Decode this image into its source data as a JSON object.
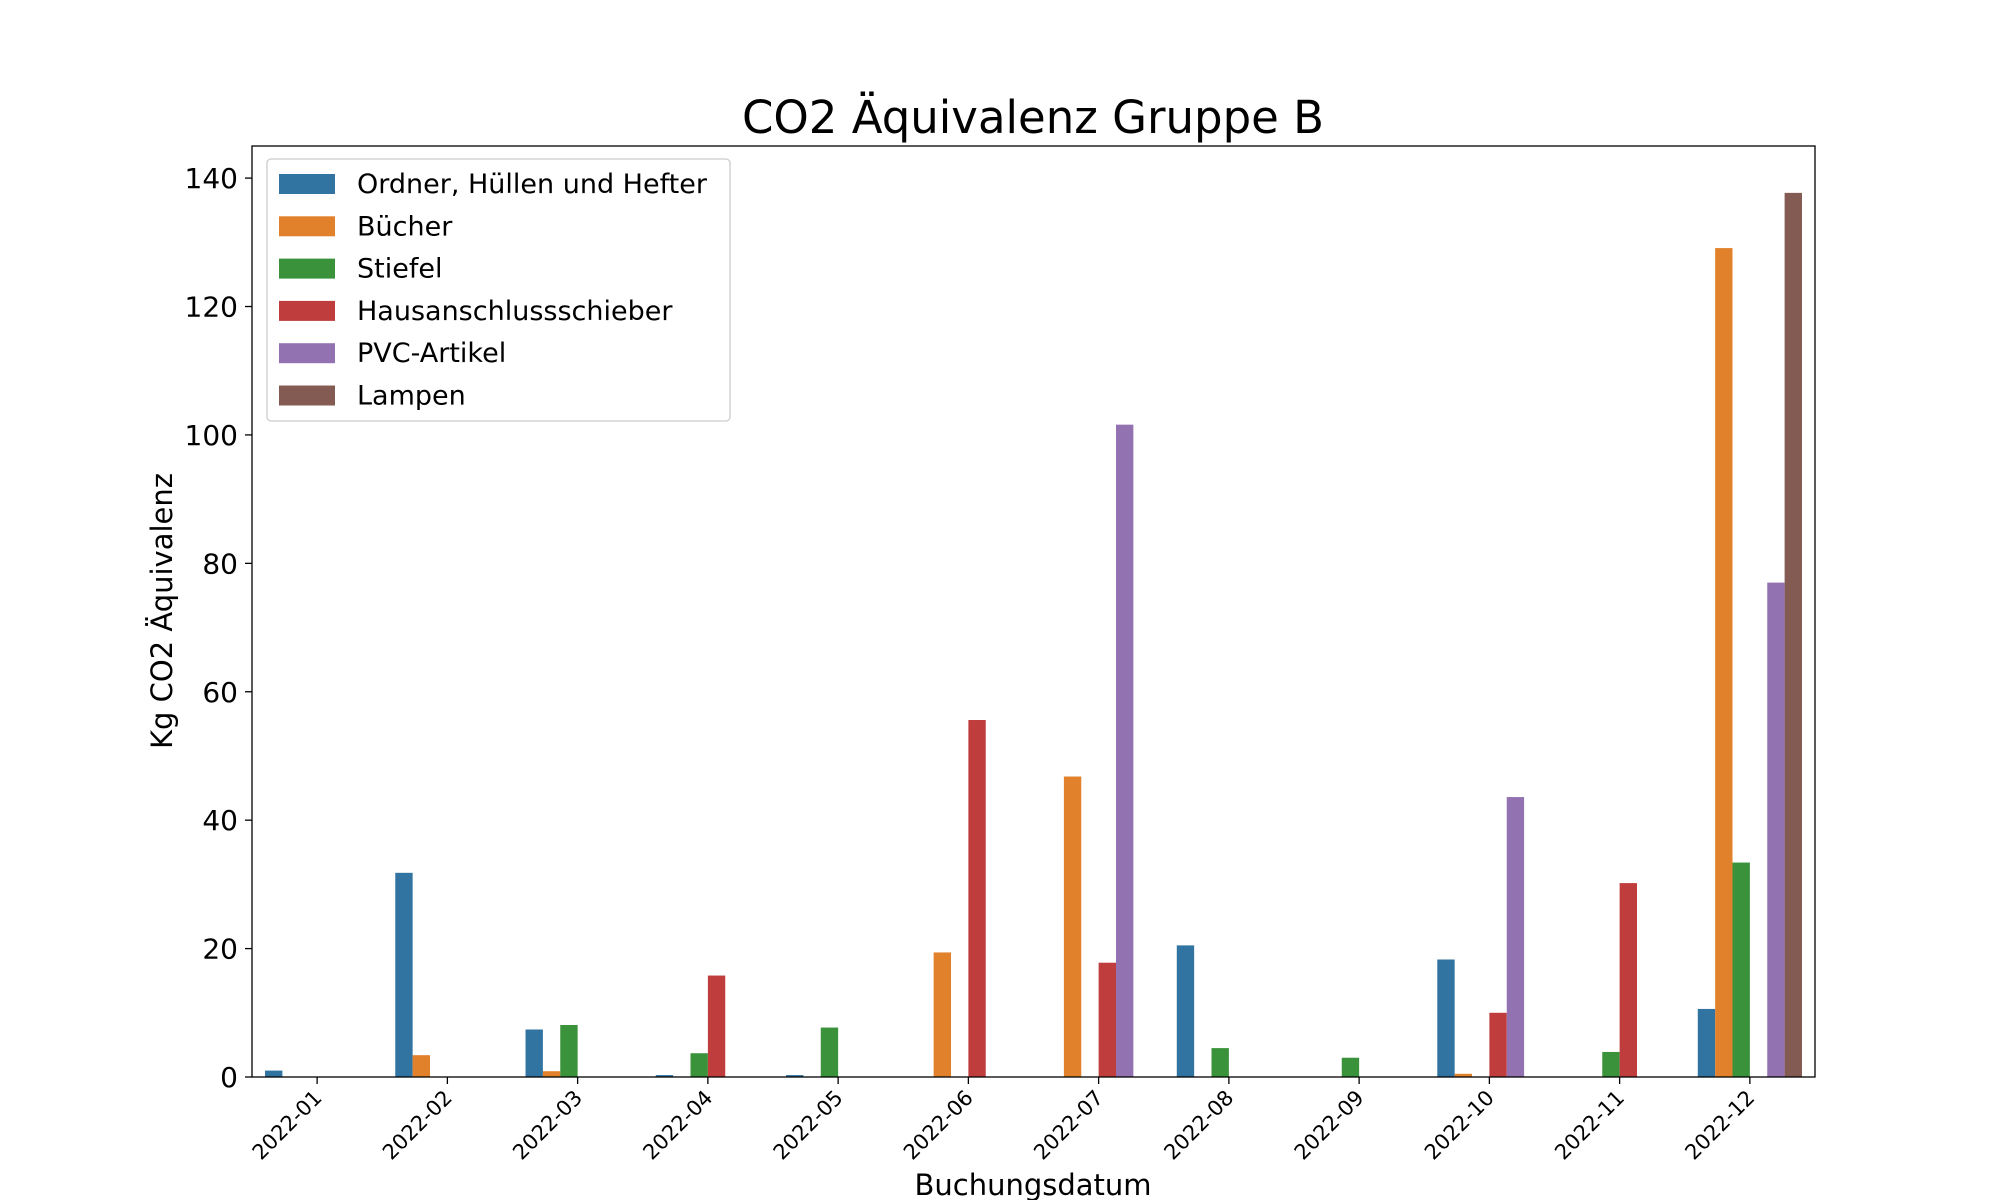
{
  "chart_data": {
    "type": "bar",
    "title": "CO2 Äquivalenz Gruppe B",
    "xlabel": "Buchungsdatum",
    "ylabel": "Kg CO2 Äquivalenz",
    "ylim": [
      0,
      145
    ],
    "yticks": [
      0,
      20,
      40,
      60,
      80,
      100,
      120,
      140
    ],
    "ytick_labels": [
      "0",
      "20",
      "40",
      "60",
      "80",
      "100",
      "120",
      "140"
    ],
    "grid": false,
    "legend_position": "top-left",
    "categories": [
      "2022-01",
      "2022-02",
      "2022-03",
      "2022-04",
      "2022-05",
      "2022-06",
      "2022-07",
      "2022-08",
      "2022-09",
      "2022-10",
      "2022-11",
      "2022-12"
    ],
    "series": [
      {
        "name": "Ordner, Hüllen und Hefter",
        "color": "#3274a1",
        "values": [
          1.0,
          31.8,
          7.4,
          0.3,
          0.3,
          0,
          0,
          20.5,
          0,
          18.3,
          0,
          10.6
        ]
      },
      {
        "name": "Bücher",
        "color": "#e1812c",
        "values": [
          0,
          3.4,
          0.9,
          0,
          0,
          19.4,
          46.8,
          0,
          0,
          0.5,
          0,
          129.1
        ]
      },
      {
        "name": "Stiefel",
        "color": "#3a923a",
        "values": [
          0,
          0,
          8.1,
          3.7,
          7.7,
          0,
          0,
          4.5,
          3.0,
          0,
          3.9,
          33.4
        ]
      },
      {
        "name": "Hausanschlussschieber",
        "color": "#c03d3e",
        "values": [
          0,
          0,
          0,
          15.8,
          0,
          55.6,
          17.8,
          0,
          0,
          10.0,
          30.2,
          0
        ]
      },
      {
        "name": "PVC-Artikel",
        "color": "#9372b2",
        "values": [
          0,
          0,
          0,
          0,
          0,
          0,
          101.6,
          0,
          0,
          43.6,
          0,
          77.0
        ]
      },
      {
        "name": "Lampen",
        "color": "#845b53",
        "values": [
          0,
          0,
          0,
          0,
          0,
          0,
          0,
          0,
          0,
          0,
          0,
          137.7
        ]
      }
    ]
  }
}
